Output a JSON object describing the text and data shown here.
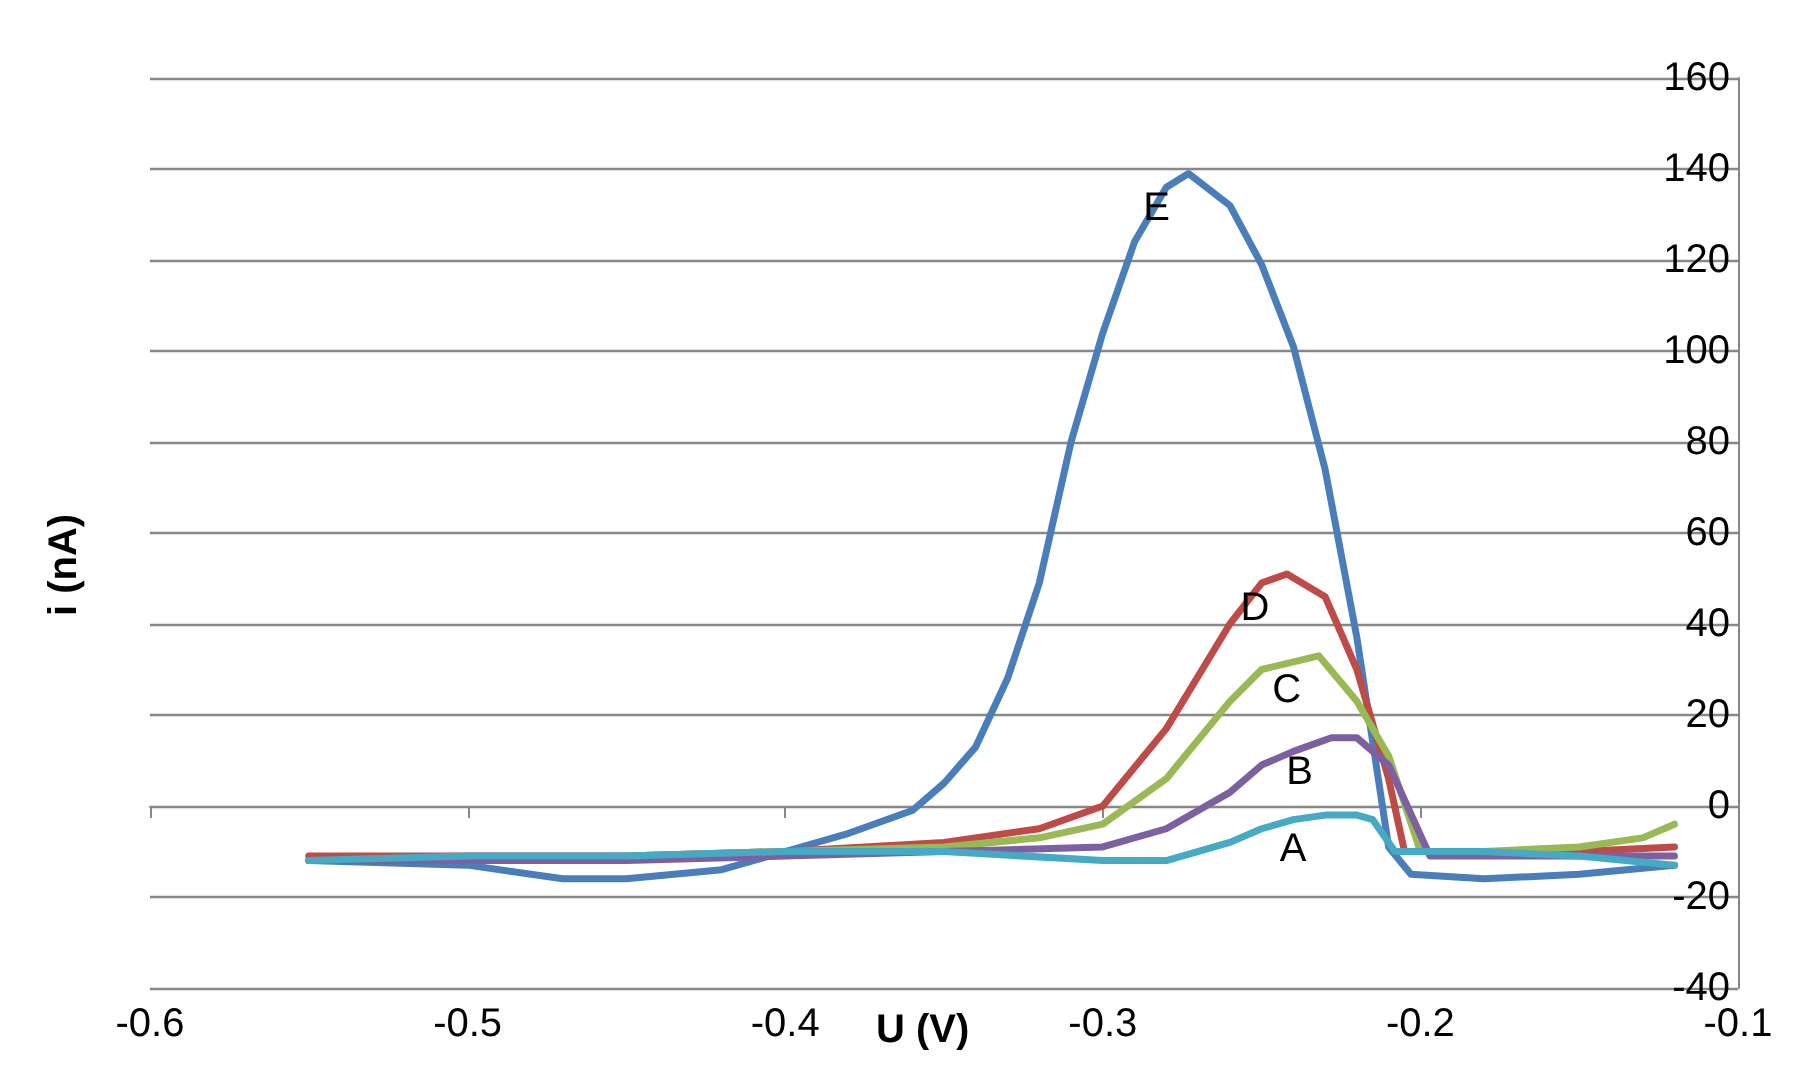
{
  "chart_data": {
    "type": "line",
    "xlabel": "U (V)",
    "ylabel": "i (nA)",
    "xlim": [
      -0.6,
      -0.1
    ],
    "xticks": [
      -0.6,
      -0.5,
      -0.4,
      -0.3,
      -0.2,
      -0.1
    ],
    "ylim": [
      -40,
      160
    ],
    "yticks": [
      -40,
      -20,
      0,
      20,
      40,
      60,
      80,
      100,
      120,
      140,
      160
    ],
    "grid": "y",
    "legend": false,
    "marker": "none",
    "line_style": "solid",
    "series": [
      {
        "name": "E",
        "color": "#4a7ebb",
        "x": [
          -0.55,
          -0.5,
          -0.47,
          -0.45,
          -0.42,
          -0.4,
          -0.38,
          -0.36,
          -0.35,
          -0.34,
          -0.33,
          -0.32,
          -0.31,
          -0.3,
          -0.29,
          -0.28,
          -0.273,
          -0.26,
          -0.25,
          -0.24,
          -0.23,
          -0.22,
          -0.21,
          -0.203,
          -0.18,
          -0.15,
          -0.12
        ],
        "values": [
          -12,
          -13,
          -16,
          -16,
          -14,
          -10,
          -6,
          -1,
          5,
          13,
          28,
          49,
          80,
          104,
          124,
          136,
          139,
          132,
          119,
          101,
          74,
          37,
          -9,
          -15,
          -16,
          -15,
          -13
        ]
      },
      {
        "name": "D",
        "color": "#be4b48",
        "x": [
          -0.55,
          -0.5,
          -0.45,
          -0.4,
          -0.35,
          -0.32,
          -0.3,
          -0.28,
          -0.26,
          -0.25,
          -0.242,
          -0.23,
          -0.22,
          -0.21,
          -0.205,
          -0.18,
          -0.15,
          -0.12
        ],
        "values": [
          -11,
          -11,
          -11,
          -10,
          -8,
          -5,
          0,
          17,
          40,
          49,
          51,
          46,
          30,
          6,
          -10,
          -10,
          -10,
          -9
        ]
      },
      {
        "name": "C",
        "color": "#98b954",
        "x": [
          -0.55,
          -0.5,
          -0.45,
          -0.4,
          -0.35,
          -0.32,
          -0.3,
          -0.28,
          -0.26,
          -0.25,
          -0.232,
          -0.22,
          -0.21,
          -0.2,
          -0.18,
          -0.15,
          -0.13,
          -0.12
        ],
        "values": [
          -12,
          -12,
          -11,
          -10,
          -9,
          -7,
          -4,
          6,
          23,
          30,
          33,
          23,
          11,
          -10,
          -10,
          -9,
          -7,
          -4
        ]
      },
      {
        "name": "B",
        "color": "#7d60a0",
        "x": [
          -0.55,
          -0.5,
          -0.45,
          -0.4,
          -0.35,
          -0.3,
          -0.28,
          -0.26,
          -0.25,
          -0.24,
          -0.228,
          -0.22,
          -0.21,
          -0.197,
          -0.18,
          -0.15,
          -0.12
        ],
        "values": [
          -12,
          -12,
          -12,
          -11,
          -10,
          -9,
          -5,
          3,
          9,
          12,
          15,
          15,
          9,
          -11,
          -11,
          -11,
          -11
        ]
      },
      {
        "name": "A",
        "color": "#46aac5",
        "x": [
          -0.55,
          -0.5,
          -0.45,
          -0.4,
          -0.35,
          -0.3,
          -0.28,
          -0.26,
          -0.25,
          -0.24,
          -0.23,
          -0.22,
          -0.215,
          -0.208,
          -0.18,
          -0.15,
          -0.12
        ],
        "values": [
          -12,
          -11,
          -11,
          -10,
          -10,
          -12,
          -12,
          -8,
          -5,
          -3,
          -2,
          -2,
          -3,
          -10,
          -10,
          -11,
          -13
        ]
      }
    ]
  }
}
